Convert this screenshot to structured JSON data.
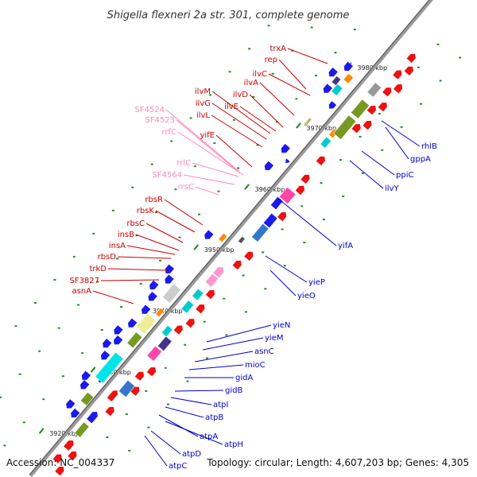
{
  "title": "Shigella flexneri 2a str. 301, complete genome",
  "footer": {
    "accession": "Accession: NC_004337",
    "summary": "Topology: circular; Length: 4,607,203 bp; Genes: 4,305"
  },
  "colors": {
    "forward_label": "#cc0000",
    "reverse_label": "#0000cc",
    "rna_label": "#ff88bb",
    "backbone": "#9a9a9a",
    "tick": "#1a8a1a"
  },
  "scale_ticks": [
    {
      "kbp": 3920,
      "label": "3920 kbp"
    },
    {
      "kbp": 3930,
      "label": "3930 kbp"
    },
    {
      "kbp": 3940,
      "label": "3940 kbp"
    },
    {
      "kbp": 3950,
      "label": "3950 kbp"
    },
    {
      "kbp": 3960,
      "label": "3960 kbp"
    },
    {
      "kbp": 3970,
      "label": "3970 kbp"
    },
    {
      "kbp": 3980,
      "label": "3980 kbp"
    }
  ],
  "forward_genes": [
    {
      "name": "trxA",
      "kind": "cds"
    },
    {
      "name": "rep",
      "kind": "cds"
    },
    {
      "name": "ilvC",
      "kind": "cds"
    },
    {
      "name": "ilvA",
      "kind": "cds"
    },
    {
      "name": "ilvD",
      "kind": "cds"
    },
    {
      "name": "ilvE",
      "kind": "cds"
    },
    {
      "name": "ilvM",
      "kind": "cds"
    },
    {
      "name": "ilvG",
      "kind": "cds"
    },
    {
      "name": "ilvL",
      "kind": "cds"
    },
    {
      "name": "SF4524",
      "kind": "rna"
    },
    {
      "name": "SF4523",
      "kind": "rna"
    },
    {
      "name": "rrfC",
      "kind": "rna"
    },
    {
      "name": "yifE",
      "kind": "cds"
    },
    {
      "name": "rrlC",
      "kind": "rna"
    },
    {
      "name": "SF4564",
      "kind": "rna"
    },
    {
      "name": "rrsC",
      "kind": "rna"
    },
    {
      "name": "rbsR",
      "kind": "cds"
    },
    {
      "name": "rbsK",
      "kind": "cds"
    },
    {
      "name": "rbsC",
      "kind": "cds"
    },
    {
      "name": "insB",
      "kind": "cds"
    },
    {
      "name": "insA",
      "kind": "cds"
    },
    {
      "name": "rbsD",
      "kind": "cds"
    },
    {
      "name": "trkD",
      "kind": "cds"
    },
    {
      "name": "SF3827",
      "kind": "cds"
    },
    {
      "name": "asnA",
      "kind": "cds"
    }
  ],
  "reverse_genes": [
    {
      "name": "rhlB"
    },
    {
      "name": "gppA"
    },
    {
      "name": "ppiC"
    },
    {
      "name": "ilvY"
    },
    {
      "name": "yifA"
    },
    {
      "name": "yieP"
    },
    {
      "name": "yieO"
    },
    {
      "name": "yieN"
    },
    {
      "name": "yieM"
    },
    {
      "name": "asnC"
    },
    {
      "name": "mioC"
    },
    {
      "name": "gidA"
    },
    {
      "name": "gidB"
    },
    {
      "name": "atpI"
    },
    {
      "name": "atpB"
    },
    {
      "name": "atpA"
    },
    {
      "name": "atpH"
    },
    {
      "name": "atpD"
    },
    {
      "name": "atpC"
    }
  ]
}
